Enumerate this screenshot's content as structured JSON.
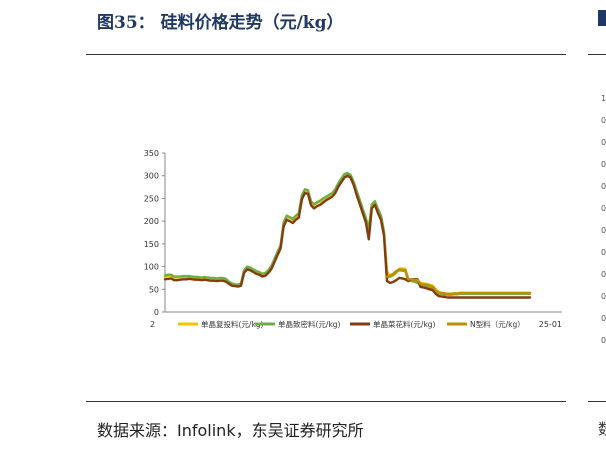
{
  "header": {
    "title": "图35：  硅料价格走势（元/kg）"
  },
  "footer": {
    "source": "数据来源：Infolink，东吴证券研究所"
  },
  "right_panel": {
    "ticks": [
      "1",
      "0",
      "0",
      "0",
      "0",
      "0",
      "0",
      "0",
      "0",
      "0",
      "0",
      "0"
    ],
    "footer_char": "数"
  },
  "chart_data": {
    "type": "line",
    "ylim": [
      0,
      350
    ],
    "yticks": [
      0,
      50,
      100,
      150,
      200,
      250,
      300,
      350
    ],
    "xtick_labels": [
      "2",
      "25-01"
    ],
    "legend_position": "bottom",
    "x": [
      0,
      1,
      2,
      3,
      4,
      5,
      6,
      7,
      8,
      9,
      10,
      11,
      12,
      13,
      14,
      15,
      16,
      17,
      18,
      19,
      20,
      21,
      22,
      23,
      24,
      25,
      26,
      27,
      28,
      29,
      30,
      31,
      32,
      33,
      34,
      35,
      36,
      37,
      38,
      39,
      40,
      41,
      42,
      43,
      44,
      45,
      46,
      47,
      48,
      49,
      50,
      51,
      52,
      53,
      54,
      55,
      56,
      57,
      58,
      59,
      60,
      61,
      62,
      63,
      64,
      65,
      66,
      67,
      68,
      69,
      70,
      71,
      72,
      73,
      74,
      75,
      76,
      77,
      78,
      79,
      80,
      81,
      82,
      83,
      84,
      85,
      86,
      87,
      88,
      89,
      90,
      91,
      92,
      93,
      94,
      95,
      96,
      97,
      98,
      99,
      100,
      101,
      102,
      103,
      104,
      105,
      106,
      107,
      108,
      109,
      110,
      111,
      112,
      113,
      114,
      115,
      116,
      117,
      118,
      119,
      120
    ],
    "series": [
      {
        "name": "单晶复投料(元/kg)",
        "color": "#f5c400",
        "values": [
          78,
          80,
          80,
          76,
          76,
          77,
          77,
          77,
          78,
          77,
          76,
          76,
          75,
          76,
          75,
          74,
          74,
          73,
          74,
          74,
          72,
          66,
          62,
          60,
          59,
          62,
          90,
          98,
          96,
          92,
          88,
          86,
          82,
          84,
          90,
          100,
          115,
          130,
          145,
          195,
          210,
          207,
          203,
          210,
          215,
          255,
          268,
          266,
          242,
          235,
          240,
          243,
          248,
          252,
          256,
          260,
          268,
          282,
          292,
          302,
          304,
          300,
          285,
          265,
          245,
          225,
          205,
          183,
          235,
          242,
          225,
          210,
          175,
          90,
          78,
          80,
          86,
          95,
          96,
          95,
          72,
          72,
          70,
          70,
          64,
          63,
          62,
          60,
          58,
          50,
          44,
          42,
          41,
          40,
          40,
          41,
          41,
          42,
          42,
          42,
          42,
          42,
          42,
          42,
          42,
          42,
          42,
          42,
          42,
          42,
          42,
          42,
          42,
          42,
          42,
          42,
          42,
          42,
          42,
          42,
          42
        ]
      },
      {
        "name": "单晶致密料(元/kg)",
        "color": "#70ad47",
        "values": [
          80,
          82,
          82,
          78,
          78,
          78,
          79,
          79,
          79,
          78,
          77,
          77,
          76,
          77,
          76,
          75,
          75,
          74,
          75,
          75,
          73,
          67,
          63,
          61,
          60,
          63,
          92,
          100,
          98,
          94,
          90,
          88,
          84,
          86,
          92,
          102,
          117,
          132,
          147,
          197,
          212,
          209,
          205,
          212,
          217,
          257,
          270,
          268,
          244,
          237,
          242,
          245,
          250,
          254,
          258,
          262,
          270,
          284,
          294,
          304,
          306,
          302,
          287,
          267,
          247,
          227,
          207,
          185,
          237,
          244,
          227,
          212,
          177,
          76,
          78,
          82,
          88,
          92,
          91,
          90,
          70,
          68,
          67,
          64,
          60,
          58,
          56,
          55,
          52,
          46,
          41,
          40,
          38,
          38,
          38,
          39,
          39,
          40,
          40,
          40,
          40,
          40,
          40,
          40,
          40,
          40,
          40,
          40,
          40,
          40,
          40,
          40,
          40,
          40,
          40,
          40,
          40,
          40,
          40,
          40,
          40
        ]
      },
      {
        "name": "单晶菜花料(元/kg)",
        "color": "#843c0c",
        "values": [
          72,
          73,
          74,
          70,
          70,
          71,
          72,
          72,
          73,
          72,
          71,
          71,
          70,
          71,
          70,
          69,
          69,
          68,
          69,
          69,
          67,
          62,
          58,
          57,
          56,
          58,
          86,
          94,
          92,
          88,
          84,
          82,
          78,
          80,
          86,
          95,
          110,
          125,
          140,
          188,
          203,
          200,
          196,
          203,
          208,
          248,
          262,
          260,
          235,
          228,
          233,
          236,
          241,
          246,
          250,
          254,
          262,
          276,
          286,
          296,
          300,
          296,
          280,
          258,
          238,
          218,
          198,
          160,
          228,
          236,
          218,
          203,
          168,
          68,
          64,
          66,
          70,
          75,
          74,
          72,
          68,
          72,
          72,
          72,
          55,
          54,
          52,
          50,
          48,
          40,
          35,
          34,
          33,
          32,
          32,
          32,
          32,
          32,
          32,
          32,
          32,
          32,
          32,
          32,
          32,
          32,
          32,
          32,
          32,
          32,
          32,
          32,
          32,
          32,
          32,
          32,
          32,
          32,
          32,
          32,
          32
        ]
      },
      {
        "name": "N型料（元/kg）",
        "color": "#bf8f00",
        "values": [
          null,
          null,
          null,
          null,
          null,
          null,
          null,
          null,
          null,
          null,
          null,
          null,
          null,
          null,
          null,
          null,
          null,
          null,
          null,
          null,
          null,
          null,
          null,
          null,
          null,
          null,
          null,
          null,
          null,
          null,
          null,
          null,
          null,
          null,
          null,
          null,
          null,
          null,
          null,
          null,
          null,
          null,
          null,
          null,
          null,
          null,
          null,
          null,
          null,
          null,
          null,
          null,
          null,
          null,
          null,
          null,
          null,
          null,
          null,
          null,
          null,
          null,
          null,
          null,
          null,
          null,
          null,
          null,
          null,
          null,
          null,
          null,
          null,
          78,
          80,
          84,
          90,
          94,
          93,
          92,
          72,
          72,
          70,
          70,
          62,
          61,
          60,
          58,
          56,
          48,
          43,
          42,
          41,
          40,
          40,
          41,
          41,
          42,
          42,
          42,
          42,
          42,
          42,
          42,
          42,
          42,
          42,
          42,
          42,
          42,
          42,
          42,
          42,
          42,
          42,
          42,
          42,
          42,
          42,
          42,
          42
        ]
      }
    ]
  }
}
